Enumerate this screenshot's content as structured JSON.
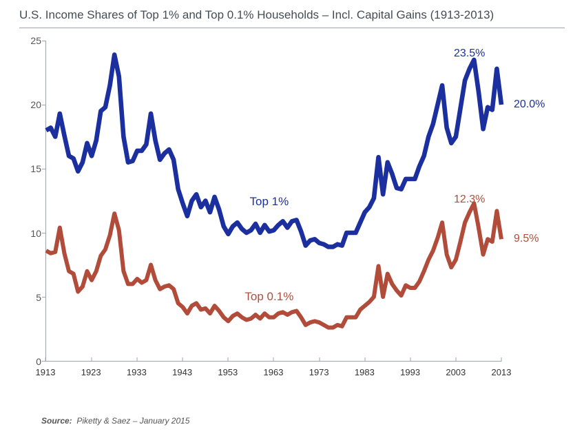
{
  "title": "U.S. Income Shares of Top 1% and Top 0.1% Households – Incl. Capital Gains (1913-2013)",
  "source_label": "Source:",
  "source_text": "Piketty & Saez – January 2015",
  "chart": {
    "type": "line",
    "xlim": [
      1913,
      2013
    ],
    "ylim": [
      0,
      25
    ],
    "ytick_step": 5,
    "xtick_step": 10,
    "background_color": "#ffffff",
    "axis_color": "#9ca3af",
    "tick_font_size": 14,
    "series": [
      {
        "name": "Top 1%",
        "label": "Top 1%",
        "color": "#1b2f9e",
        "line_width": 2.2,
        "label_pos": {
          "year": 1962,
          "value": 12.4
        },
        "end_callout": {
          "text": "20.0%",
          "year": 2013,
          "value": 20.0
        },
        "peak_callout": {
          "text": "23.5%",
          "year": 2006,
          "value": 24.0
        },
        "data": {
          "1913": 18.0,
          "1914": 18.2,
          "1915": 17.5,
          "1916": 19.3,
          "1917": 17.6,
          "1918": 16.0,
          "1919": 15.8,
          "1920": 14.8,
          "1921": 15.5,
          "1922": 17.0,
          "1923": 16.0,
          "1924": 17.2,
          "1925": 19.5,
          "1926": 19.8,
          "1927": 21.5,
          "1928": 23.9,
          "1929": 22.2,
          "1930": 17.5,
          "1931": 15.5,
          "1932": 15.6,
          "1933": 16.4,
          "1934": 16.4,
          "1935": 16.9,
          "1936": 19.3,
          "1937": 17.2,
          "1938": 15.7,
          "1939": 16.2,
          "1940": 16.5,
          "1941": 15.7,
          "1942": 13.4,
          "1943": 12.3,
          "1944": 11.3,
          "1945": 12.5,
          "1946": 13.0,
          "1947": 12.0,
          "1948": 12.5,
          "1949": 11.6,
          "1950": 12.8,
          "1951": 11.8,
          "1952": 10.5,
          "1953": 9.9,
          "1954": 10.5,
          "1955": 10.8,
          "1956": 10.3,
          "1957": 10.0,
          "1958": 10.2,
          "1959": 10.7,
          "1960": 10.0,
          "1961": 10.6,
          "1962": 10.1,
          "1963": 10.2,
          "1964": 10.6,
          "1965": 10.9,
          "1966": 10.4,
          "1967": 10.9,
          "1968": 11.0,
          "1969": 10.1,
          "1970": 9.0,
          "1971": 9.4,
          "1972": 9.5,
          "1973": 9.2,
          "1974": 9.1,
          "1975": 8.9,
          "1976": 8.9,
          "1977": 9.1,
          "1978": 9.0,
          "1979": 10.0,
          "1980": 10.0,
          "1981": 10.0,
          "1982": 10.8,
          "1983": 11.6,
          "1984": 12.0,
          "1985": 12.7,
          "1986": 15.9,
          "1987": 13.0,
          "1988": 15.5,
          "1989": 14.6,
          "1990": 13.5,
          "1991": 13.4,
          "1992": 14.2,
          "1993": 14.2,
          "1994": 14.2,
          "1995": 15.2,
          "1996": 16.0,
          "1997": 17.5,
          "1998": 18.5,
          "1999": 20.0,
          "2000": 21.5,
          "2001": 18.2,
          "2002": 17.0,
          "2003": 17.5,
          "2004": 19.7,
          "2005": 21.9,
          "2006": 22.8,
          "2007": 23.5,
          "2008": 21.0,
          "2009": 18.1,
          "2010": 19.8,
          "2011": 19.6,
          "2012": 22.8,
          "2013": 20.0
        }
      },
      {
        "name": "Top 0.1%",
        "label": "Top 0.1%",
        "color": "#b24c3a",
        "line_width": 2.0,
        "label_pos": {
          "year": 1962,
          "value": 5.0
        },
        "end_callout": {
          "text": "9.5%",
          "year": 2013,
          "value": 9.5
        },
        "peak_callout": {
          "text": "12.3%",
          "year": 2006,
          "value": 12.6
        },
        "data": {
          "1913": 8.6,
          "1914": 8.4,
          "1915": 8.5,
          "1916": 10.4,
          "1917": 8.4,
          "1918": 7.0,
          "1919": 6.8,
          "1920": 5.4,
          "1921": 5.8,
          "1922": 7.0,
          "1923": 6.3,
          "1924": 7.0,
          "1925": 8.2,
          "1926": 8.7,
          "1927": 9.8,
          "1928": 11.5,
          "1929": 10.2,
          "1930": 7.0,
          "1931": 6.0,
          "1932": 6.0,
          "1933": 6.4,
          "1934": 6.1,
          "1935": 6.3,
          "1936": 7.5,
          "1937": 6.3,
          "1938": 5.6,
          "1939": 5.8,
          "1940": 5.9,
          "1941": 5.6,
          "1942": 4.5,
          "1943": 4.2,
          "1944": 3.7,
          "1945": 4.3,
          "1946": 4.5,
          "1947": 4.0,
          "1948": 4.1,
          "1949": 3.7,
          "1950": 4.3,
          "1951": 3.9,
          "1952": 3.4,
          "1953": 3.1,
          "1954": 3.5,
          "1955": 3.7,
          "1956": 3.4,
          "1957": 3.2,
          "1958": 3.3,
          "1959": 3.6,
          "1960": 3.3,
          "1961": 3.7,
          "1962": 3.4,
          "1963": 3.4,
          "1964": 3.7,
          "1965": 3.8,
          "1966": 3.6,
          "1967": 3.8,
          "1968": 3.9,
          "1969": 3.4,
          "1970": 2.8,
          "1971": 3.0,
          "1972": 3.1,
          "1973": 3.0,
          "1974": 2.8,
          "1975": 2.6,
          "1976": 2.6,
          "1977": 2.8,
          "1978": 2.7,
          "1979": 3.4,
          "1980": 3.4,
          "1981": 3.4,
          "1982": 4.0,
          "1983": 4.3,
          "1984": 4.6,
          "1985": 5.0,
          "1986": 7.4,
          "1987": 5.0,
          "1988": 6.8,
          "1989": 6.0,
          "1990": 5.5,
          "1991": 5.1,
          "1992": 5.9,
          "1993": 5.7,
          "1994": 5.7,
          "1995": 6.2,
          "1996": 7.0,
          "1997": 7.9,
          "1998": 8.6,
          "1999": 9.6,
          "2000": 10.8,
          "2001": 8.3,
          "2002": 7.3,
          "2003": 7.9,
          "2004": 9.3,
          "2005": 10.8,
          "2006": 11.6,
          "2007": 12.3,
          "2008": 10.4,
          "2009": 8.3,
          "2010": 9.5,
          "2011": 9.3,
          "2012": 11.7,
          "2013": 9.5
        }
      }
    ]
  }
}
